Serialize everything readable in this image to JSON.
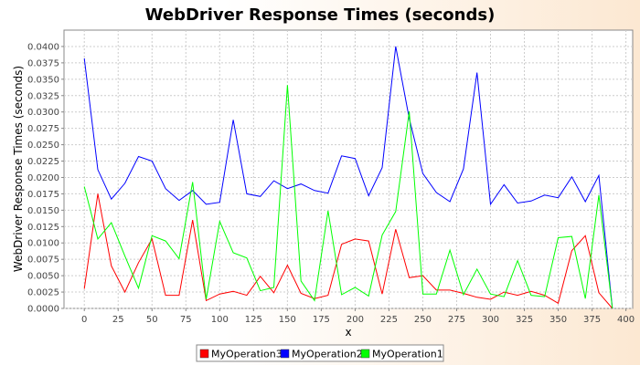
{
  "chart_data": {
    "type": "line",
    "title": "WebDriver Response Times (seconds)",
    "xlabel": "x",
    "ylabel": "WebDriver Response Times (seconds)",
    "xlim": [
      -15,
      405
    ],
    "ylim": [
      0,
      0.0425
    ],
    "xticks": [
      "0",
      "25",
      "50",
      "75",
      "100",
      "125",
      "150",
      "175",
      "200",
      "225",
      "250",
      "275",
      "300",
      "325",
      "350",
      "375",
      "400"
    ],
    "yticks": [
      "0.0000",
      "0.0025",
      "0.0050",
      "0.0075",
      "0.0100",
      "0.0125",
      "0.0150",
      "0.0175",
      "0.0200",
      "0.0225",
      "0.0250",
      "0.0275",
      "0.0300",
      "0.0325",
      "0.0350",
      "0.0375",
      "0.0400"
    ],
    "grid": true,
    "legend_position": "bottom",
    "x": [
      0,
      10,
      20,
      30,
      40,
      50,
      60,
      70,
      80,
      90,
      100,
      110,
      120,
      130,
      140,
      150,
      160,
      170,
      180,
      190,
      200,
      210,
      220,
      230,
      240,
      250,
      260,
      270,
      280,
      290,
      300,
      310,
      320,
      330,
      340,
      350,
      360,
      370,
      380,
      390
    ],
    "series": [
      {
        "name": "MyOperation3",
        "color": "#ff0000",
        "values": [
          0.003,
          0.0175,
          0.0065,
          0.0025,
          0.007,
          0.0106,
          0.002,
          0.002,
          0.0135,
          0.0012,
          0.0022,
          0.0026,
          0.002,
          0.0049,
          0.0024,
          0.0066,
          0.0023,
          0.0015,
          0.002,
          0.0098,
          0.0106,
          0.0103,
          0.0022,
          0.0121,
          0.0047,
          0.005,
          0.0028,
          0.0028,
          0.0023,
          0.0017,
          0.0014,
          0.0025,
          0.002,
          0.0026,
          0.002,
          0.0008,
          0.0088,
          0.0111,
          0.0024,
          0.0
        ]
      },
      {
        "name": "MyOperation2",
        "color": "#0000ff",
        "values": [
          0.0382,
          0.0212,
          0.0167,
          0.0191,
          0.0232,
          0.0225,
          0.0183,
          0.0165,
          0.018,
          0.0159,
          0.0162,
          0.0288,
          0.0175,
          0.0171,
          0.0195,
          0.0183,
          0.019,
          0.018,
          0.0176,
          0.0233,
          0.0229,
          0.0172,
          0.0215,
          0.04,
          0.029,
          0.0206,
          0.0177,
          0.0163,
          0.0213,
          0.036,
          0.0159,
          0.0189,
          0.0161,
          0.0164,
          0.0173,
          0.0169,
          0.0201,
          0.0163,
          0.0203,
          0.0
        ]
      },
      {
        "name": "MyOperation1",
        "color": "#00ff00",
        "values": [
          0.0186,
          0.0106,
          0.0131,
          0.008,
          0.0031,
          0.0111,
          0.0103,
          0.0076,
          0.0193,
          0.0014,
          0.0133,
          0.0085,
          0.0077,
          0.0027,
          0.0032,
          0.0341,
          0.0042,
          0.0012,
          0.0149,
          0.0021,
          0.0032,
          0.0019,
          0.0112,
          0.0148,
          0.0301,
          0.0022,
          0.0022,
          0.0089,
          0.0021,
          0.006,
          0.0022,
          0.0018,
          0.0073,
          0.002,
          0.0018,
          0.0108,
          0.011,
          0.0015,
          0.0173,
          0.0
        ]
      }
    ]
  }
}
